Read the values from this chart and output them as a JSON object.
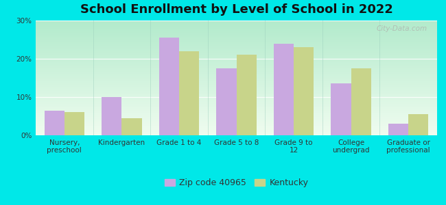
{
  "title": "School Enrollment by Level of School in 2022",
  "categories": [
    "Nursery,\npreschool",
    "Kindergarten",
    "Grade 1 to 4",
    "Grade 5 to 8",
    "Grade 9 to\n12",
    "College\nundergrad",
    "Graduate or\nprofessional"
  ],
  "zip_values": [
    6.5,
    10.0,
    25.5,
    17.5,
    24.0,
    13.5,
    3.0
  ],
  "ky_values": [
    6.0,
    4.5,
    22.0,
    21.0,
    23.0,
    17.5,
    5.5
  ],
  "zip_color": "#c9a8e0",
  "ky_color": "#c8d48a",
  "background_outer": "#00e8e8",
  "gradient_top": "#b2e8cc",
  "gradient_bottom": "#f0faf0",
  "ylim": [
    0,
    30
  ],
  "yticks": [
    0,
    10,
    20,
    30
  ],
  "ytick_labels": [
    "0%",
    "10%",
    "20%",
    "30%"
  ],
  "legend_zip_label": "Zip code 40965",
  "legend_ky_label": "Kentucky",
  "bar_width": 0.35,
  "title_fontsize": 13,
  "tick_fontsize": 7.5,
  "legend_fontsize": 9,
  "watermark": "City-Data.com"
}
